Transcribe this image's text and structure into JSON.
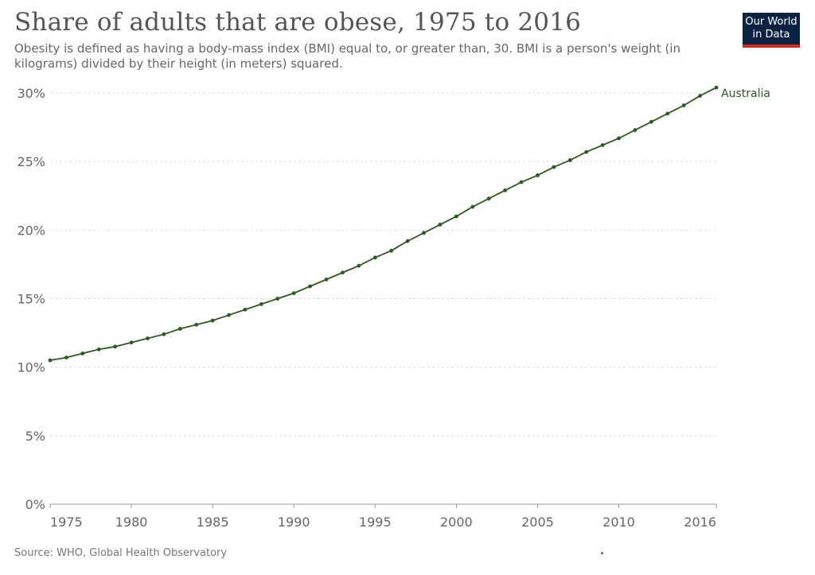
{
  "header": {
    "title": "Share of adults that are obese, 1975 to 2016",
    "subtitle": "Obesity is defined as having a body-mass index (BMI) equal to, or greater than, 30. BMI is a person's weight (in kilograms) divided by their height (in meters) squared."
  },
  "logo": {
    "line1": "Our World",
    "line2": "in Data",
    "bg_color": "#0b2242",
    "accent_color": "#d42b21"
  },
  "footer": {
    "source": "Source: WHO, Global Health Observatory"
  },
  "chart_data": {
    "type": "line",
    "title": "Share of adults that are obese, 1975 to 2016",
    "xlabel": "",
    "ylabel": "",
    "x": [
      1975,
      1976,
      1977,
      1978,
      1979,
      1980,
      1981,
      1982,
      1983,
      1984,
      1985,
      1986,
      1987,
      1988,
      1989,
      1990,
      1991,
      1992,
      1993,
      1994,
      1995,
      1996,
      1997,
      1998,
      1999,
      2000,
      2001,
      2002,
      2003,
      2004,
      2005,
      2006,
      2007,
      2008,
      2009,
      2010,
      2011,
      2012,
      2013,
      2014,
      2015,
      2016
    ],
    "xticks": [
      1975,
      1980,
      1985,
      1990,
      1995,
      2000,
      2005,
      2010,
      2016
    ],
    "xlim": [
      1975,
      2016
    ],
    "ylim": [
      0,
      30
    ],
    "yticks": [
      0,
      5,
      10,
      15,
      20,
      25,
      30
    ],
    "yunit": "%",
    "grid": "horizontal dashed",
    "series": [
      {
        "name": "Australia",
        "color": "#2d5a1f",
        "values": [
          10.5,
          10.7,
          11.0,
          11.3,
          11.5,
          11.8,
          12.1,
          12.4,
          12.8,
          13.1,
          13.4,
          13.8,
          14.2,
          14.6,
          15.0,
          15.4,
          15.9,
          16.4,
          16.9,
          17.4,
          18.0,
          18.5,
          19.2,
          19.8,
          20.4,
          21.0,
          21.7,
          22.3,
          22.9,
          23.5,
          24.0,
          24.6,
          25.1,
          25.7,
          26.2,
          26.7,
          27.3,
          27.9,
          28.5,
          29.1,
          29.8,
          30.4
        ]
      }
    ]
  }
}
